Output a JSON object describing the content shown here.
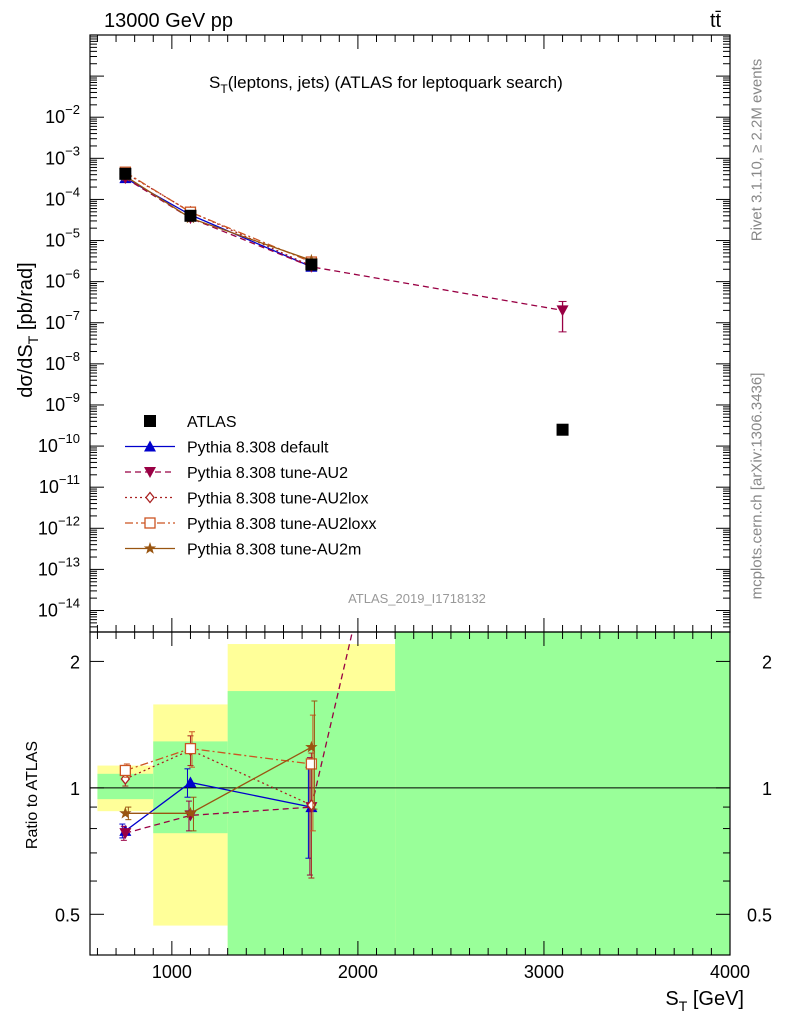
{
  "header": {
    "left": "13000 GeV pp",
    "right": "tt̄"
  },
  "side_labels": {
    "rivet": "Rivet 3.1.10, ≥ 2.2M events",
    "mcplots": "mcplots.cern.ch [arXiv:1306.3436]"
  },
  "plot_id": "ATLAS_2019_I1718132",
  "chart_data": [
    {
      "panel": "main",
      "type": "scatter",
      "title_main": "S",
      "title_sub": "T",
      "title_rest": "(leptons, jets) (ATLAS for leptoquark search)",
      "ylabel": "dσ/dS_T [pb/rad]",
      "yscale": "log",
      "xlim": [
        560,
        4000
      ],
      "ylim": [
        3e-15,
        1
      ],
      "y_ticks": [
        "10^-14",
        "10^-13",
        "10^-12",
        "10^-11",
        "10^-10",
        "10^-9",
        "10^-8",
        "10^-7",
        "10^-6",
        "10^-5",
        "10^-4",
        "10^-3",
        "10^-2"
      ],
      "legend_position": "center-left",
      "data": {
        "name": "ATLAS",
        "color": "#000000",
        "marker": "square",
        "x": [
          750,
          1100,
          1750,
          3100
        ],
        "y": [
          0.00042,
          4e-05,
          2.6e-06,
          2.5e-10
        ]
      },
      "series": [
        {
          "name": "Pythia 8.308 default",
          "color": "#0000cc",
          "dash": "",
          "marker": "triangle-up",
          "x": [
            750,
            1100,
            1750
          ],
          "y": [
            0.00033,
            4.2e-05,
            2.3e-06
          ]
        },
        {
          "name": "Pythia 8.308 tune-AU2",
          "color": "#990044",
          "dash": "6,4",
          "marker": "triangle-down",
          "x": [
            750,
            1100,
            1750,
            3100
          ],
          "y": [
            0.00033,
            3.5e-05,
            2.3e-06,
            2e-07
          ]
        },
        {
          "name": "Pythia 8.308 tune-AU2lox",
          "color": "#aa2222",
          "dash": "2,3",
          "marker": "diamond-open",
          "x": [
            750,
            1100,
            1750
          ],
          "y": [
            0.00044,
            5e-05,
            2.4e-06
          ]
        },
        {
          "name": "Pythia 8.308 tune-AU2loxx",
          "color": "#cc5522",
          "dash": "8,3,2,3",
          "marker": "square-open",
          "x": [
            750,
            1100,
            1750
          ],
          "y": [
            0.00046,
            4.9e-05,
            3e-06
          ]
        },
        {
          "name": "Pythia 8.308 tune-AU2m",
          "color": "#995511",
          "dash": "",
          "marker": "star",
          "x": [
            750,
            1100,
            1750
          ],
          "y": [
            0.00037,
            3.5e-05,
            3.3e-06
          ]
        }
      ]
    },
    {
      "panel": "ratio",
      "type": "line",
      "ylabel": "Ratio to ATLAS",
      "xlabel": "S_T [GeV]",
      "yscale": "log",
      "xlim": [
        560,
        4000
      ],
      "ylim": [
        0.4,
        2.35
      ],
      "x_ticks": [
        1000,
        2000,
        3000,
        4000
      ],
      "y_ticks": [
        0.5,
        1,
        2
      ],
      "uncertainty_bands": [
        {
          "x": [
            600,
            900
          ],
          "stat": [
            0.94,
            1.08
          ],
          "total": [
            0.88,
            1.13
          ]
        },
        {
          "x": [
            900,
            1300
          ],
          "stat": [
            0.78,
            1.29
          ],
          "total": [
            0.47,
            1.58
          ]
        },
        {
          "x": [
            1300,
            2200
          ],
          "stat": [
            0.33,
            1.7
          ],
          "total": [
            0.33,
            2.2
          ]
        },
        {
          "x": [
            2200,
            4000
          ],
          "stat": [
            0.33,
            2.35
          ],
          "total": [
            0.33,
            2.35
          ]
        }
      ],
      "series": [
        {
          "name": "Pythia 8.308 default",
          "color": "#0000cc",
          "dash": "",
          "marker": "triangle-up",
          "x": [
            750,
            1100,
            1750
          ],
          "y": [
            0.79,
            1.03,
            0.9
          ],
          "err": [
            0.03,
            0.08,
            0.22
          ]
        },
        {
          "name": "Pythia 8.308 tune-AU2",
          "color": "#990044",
          "dash": "6,4",
          "marker": "triangle-down",
          "x": [
            750,
            1100,
            1750,
            1970
          ],
          "y": [
            0.78,
            0.86,
            0.9,
            2.35
          ],
          "err": [
            0.03,
            0.07,
            0.28,
            0
          ]
        },
        {
          "name": "Pythia 8.308 tune-AU2lox",
          "color": "#aa2222",
          "dash": "2,3",
          "marker": "diamond-open",
          "x": [
            750,
            1100,
            1750
          ],
          "y": [
            1.05,
            1.23,
            0.91
          ],
          "err": [
            0.04,
            0.1,
            0.3
          ]
        },
        {
          "name": "Pythia 8.308 tune-AU2loxx",
          "color": "#cc5522",
          "dash": "8,3,2,3",
          "marker": "square-open",
          "x": [
            750,
            1100,
            1750
          ],
          "y": [
            1.1,
            1.24,
            1.14
          ],
          "err": [
            0.04,
            0.12,
            0.35
          ]
        },
        {
          "name": "Pythia 8.308 tune-AU2m",
          "color": "#995511",
          "dash": "",
          "marker": "star",
          "x": [
            750,
            1100,
            1750
          ],
          "y": [
            0.87,
            0.87,
            1.25
          ],
          "err": [
            0.03,
            0.08,
            0.36
          ]
        }
      ]
    }
  ]
}
